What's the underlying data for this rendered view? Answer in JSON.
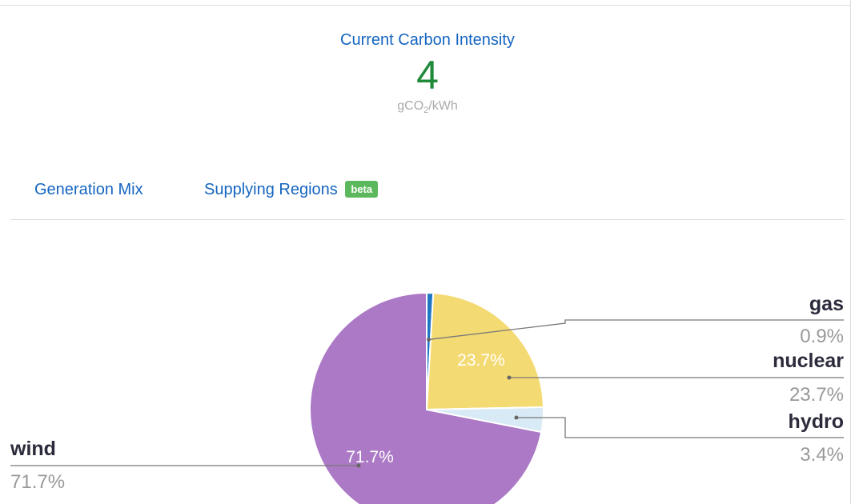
{
  "intensity": {
    "title": "Current Carbon Intensity",
    "value": "4",
    "unit_prefix": "gCO",
    "unit_sub": "2",
    "unit_suffix": "/kWh",
    "value_color": "#1e8a3a"
  },
  "tabs": {
    "generation_mix": "Generation Mix",
    "supplying_regions": "Supplying Regions",
    "beta_badge": "beta"
  },
  "chart_data": {
    "type": "pie",
    "slices": [
      {
        "name": "gas",
        "value": 0.9,
        "label": "0.9%",
        "color": "#1f77c4"
      },
      {
        "name": "nuclear",
        "value": 23.7,
        "label": "23.7%",
        "color": "#f4da72"
      },
      {
        "name": "hydro",
        "value": 3.4,
        "label": "3.4%",
        "color": "#d8eaf6"
      },
      {
        "name": "wind",
        "value": 71.7,
        "label": "71.7%",
        "color": "#ab79c5"
      }
    ]
  }
}
